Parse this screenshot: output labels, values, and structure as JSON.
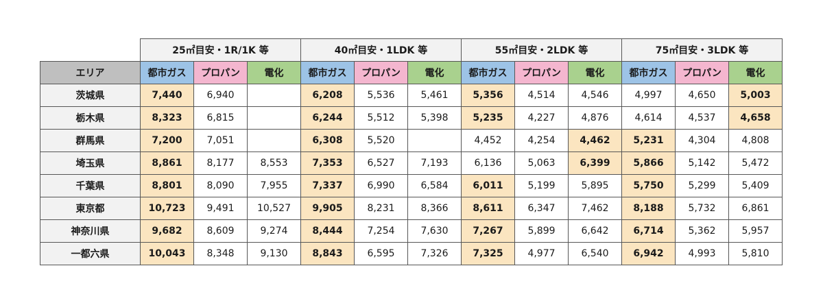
{
  "column_groups": [
    "25㎡目安・1R/1K 等",
    "40㎡目安・1LDK 等",
    "55㎡目安・2LDK 等",
    "75㎡目安・3LDK 等"
  ],
  "subheaders": {
    "area": "エリア",
    "gas": "都市ガス",
    "propane": "プロパン",
    "electric": "電化"
  },
  "colors": {
    "header_gray": "#bfbfbf",
    "gas_blue": "#9dc3e6",
    "propane_pink": "#f4b6cf",
    "electric_green": "#a9d18e",
    "highlight": "#fbe5c0"
  },
  "rows": [
    {
      "area": "茨城県",
      "cells": [
        {
          "v": "7,440",
          "hl": true
        },
        {
          "v": "6,940",
          "hl": false
        },
        {
          "v": "",
          "hl": false
        },
        {
          "v": "6,208",
          "hl": true
        },
        {
          "v": "5,536",
          "hl": false
        },
        {
          "v": "5,461",
          "hl": false
        },
        {
          "v": "5,356",
          "hl": true
        },
        {
          "v": "4,514",
          "hl": false
        },
        {
          "v": "4,546",
          "hl": false
        },
        {
          "v": "4,997",
          "hl": false
        },
        {
          "v": "4,650",
          "hl": false
        },
        {
          "v": "5,003",
          "hl": true
        }
      ]
    },
    {
      "area": "栃木県",
      "cells": [
        {
          "v": "8,323",
          "hl": true
        },
        {
          "v": "6,815",
          "hl": false
        },
        {
          "v": "",
          "hl": false
        },
        {
          "v": "6,244",
          "hl": true
        },
        {
          "v": "5,512",
          "hl": false
        },
        {
          "v": "5,398",
          "hl": false
        },
        {
          "v": "5,235",
          "hl": true
        },
        {
          "v": "4,227",
          "hl": false
        },
        {
          "v": "4,876",
          "hl": false
        },
        {
          "v": "4,614",
          "hl": false
        },
        {
          "v": "4,537",
          "hl": false
        },
        {
          "v": "4,658",
          "hl": true
        }
      ]
    },
    {
      "area": "群馬県",
      "cells": [
        {
          "v": "7,200",
          "hl": true
        },
        {
          "v": "7,051",
          "hl": false
        },
        {
          "v": "",
          "hl": false
        },
        {
          "v": "6,308",
          "hl": true
        },
        {
          "v": "5,520",
          "hl": false
        },
        {
          "v": "",
          "hl": false
        },
        {
          "v": "4,452",
          "hl": false
        },
        {
          "v": "4,254",
          "hl": false
        },
        {
          "v": "4,462",
          "hl": true
        },
        {
          "v": "5,231",
          "hl": true
        },
        {
          "v": "4,304",
          "hl": false
        },
        {
          "v": "4,808",
          "hl": false
        }
      ]
    },
    {
      "area": "埼玉県",
      "cells": [
        {
          "v": "8,861",
          "hl": true
        },
        {
          "v": "8,177",
          "hl": false
        },
        {
          "v": "8,553",
          "hl": false
        },
        {
          "v": "7,353",
          "hl": true
        },
        {
          "v": "6,527",
          "hl": false
        },
        {
          "v": "7,193",
          "hl": false
        },
        {
          "v": "6,136",
          "hl": false
        },
        {
          "v": "5,063",
          "hl": false
        },
        {
          "v": "6,399",
          "hl": true
        },
        {
          "v": "5,866",
          "hl": true
        },
        {
          "v": "5,142",
          "hl": false
        },
        {
          "v": "5,472",
          "hl": false
        }
      ]
    },
    {
      "area": "千葉県",
      "cells": [
        {
          "v": "8,801",
          "hl": true
        },
        {
          "v": "8,090",
          "hl": false
        },
        {
          "v": "7,955",
          "hl": false
        },
        {
          "v": "7,337",
          "hl": true
        },
        {
          "v": "6,990",
          "hl": false
        },
        {
          "v": "6,584",
          "hl": false
        },
        {
          "v": "6,011",
          "hl": true
        },
        {
          "v": "5,199",
          "hl": false
        },
        {
          "v": "5,895",
          "hl": false
        },
        {
          "v": "5,750",
          "hl": true
        },
        {
          "v": "5,299",
          "hl": false
        },
        {
          "v": "5,409",
          "hl": false
        }
      ]
    },
    {
      "area": "東京都",
      "cells": [
        {
          "v": "10,723",
          "hl": true
        },
        {
          "v": "9,491",
          "hl": false
        },
        {
          "v": "10,527",
          "hl": false
        },
        {
          "v": "9,905",
          "hl": true
        },
        {
          "v": "8,231",
          "hl": false
        },
        {
          "v": "8,366",
          "hl": false
        },
        {
          "v": "8,611",
          "hl": true
        },
        {
          "v": "6,347",
          "hl": false
        },
        {
          "v": "7,462",
          "hl": false
        },
        {
          "v": "8,188",
          "hl": true
        },
        {
          "v": "5,732",
          "hl": false
        },
        {
          "v": "6,861",
          "hl": false
        }
      ]
    },
    {
      "area": "神奈川県",
      "cells": [
        {
          "v": "9,682",
          "hl": true
        },
        {
          "v": "8,609",
          "hl": false
        },
        {
          "v": "9,274",
          "hl": false
        },
        {
          "v": "8,444",
          "hl": true
        },
        {
          "v": "7,254",
          "hl": false
        },
        {
          "v": "7,630",
          "hl": false
        },
        {
          "v": "7,267",
          "hl": true
        },
        {
          "v": "5,899",
          "hl": false
        },
        {
          "v": "6,642",
          "hl": false
        },
        {
          "v": "6,714",
          "hl": true
        },
        {
          "v": "5,362",
          "hl": false
        },
        {
          "v": "5,957",
          "hl": false
        }
      ]
    },
    {
      "area": "一都六県",
      "cells": [
        {
          "v": "10,043",
          "hl": true
        },
        {
          "v": "8,348",
          "hl": false
        },
        {
          "v": "9,130",
          "hl": false
        },
        {
          "v": "8,843",
          "hl": true
        },
        {
          "v": "6,595",
          "hl": false
        },
        {
          "v": "7,326",
          "hl": false
        },
        {
          "v": "7,325",
          "hl": true
        },
        {
          "v": "4,977",
          "hl": false
        },
        {
          "v": "6,540",
          "hl": false
        },
        {
          "v": "6,942",
          "hl": true
        },
        {
          "v": "4,993",
          "hl": false
        },
        {
          "v": "5,810",
          "hl": false
        }
      ]
    }
  ]
}
